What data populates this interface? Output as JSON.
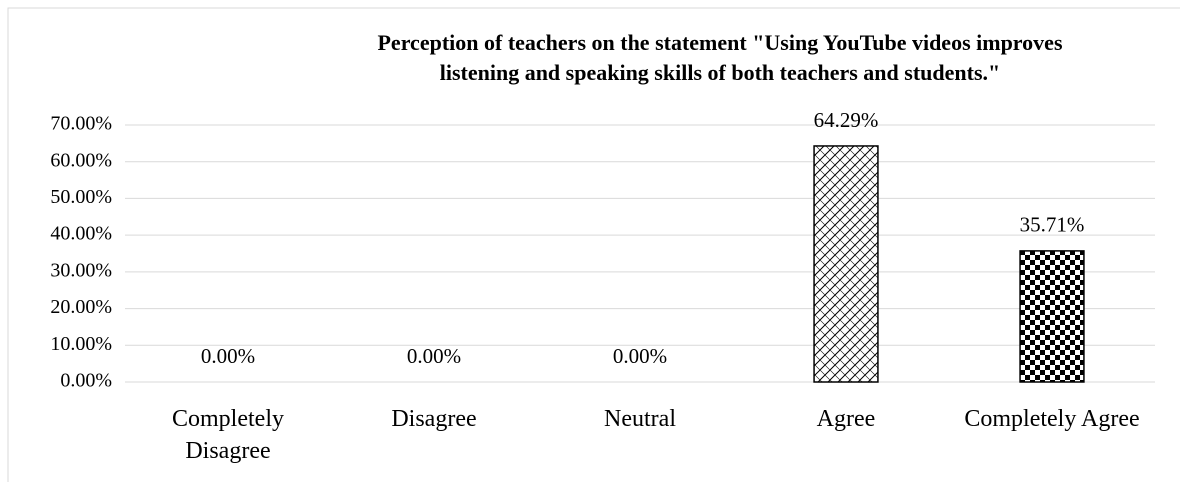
{
  "chart_data": {
    "type": "bar",
    "title": "Perception of teachers on the statement  \"Using YouTube videos improves listening and speaking skills of both teachers and students.\"",
    "categories": [
      "Completely Disagree",
      "Disagree",
      "Neutral",
      "Agree",
      "Completely Agree"
    ],
    "values": [
      0,
      0,
      0,
      64.29,
      35.71
    ],
    "value_labels": [
      "0.00%",
      "0.00%",
      "0.00%",
      "64.29%",
      "35.71%"
    ],
    "color": "#000000",
    "ylim": [
      0,
      70
    ],
    "yticks": [
      {
        "value": 0,
        "label": "0.00%"
      },
      {
        "value": 10,
        "label": "10.00%"
      },
      {
        "value": 20,
        "label": "20.00%"
      },
      {
        "value": 30,
        "label": "30.00%"
      },
      {
        "value": 40,
        "label": "40.00%"
      },
      {
        "value": 50,
        "label": "50.00%"
      },
      {
        "value": 60,
        "label": "60.00%"
      },
      {
        "value": 70,
        "label": "70.00%"
      }
    ],
    "grid": true
  }
}
